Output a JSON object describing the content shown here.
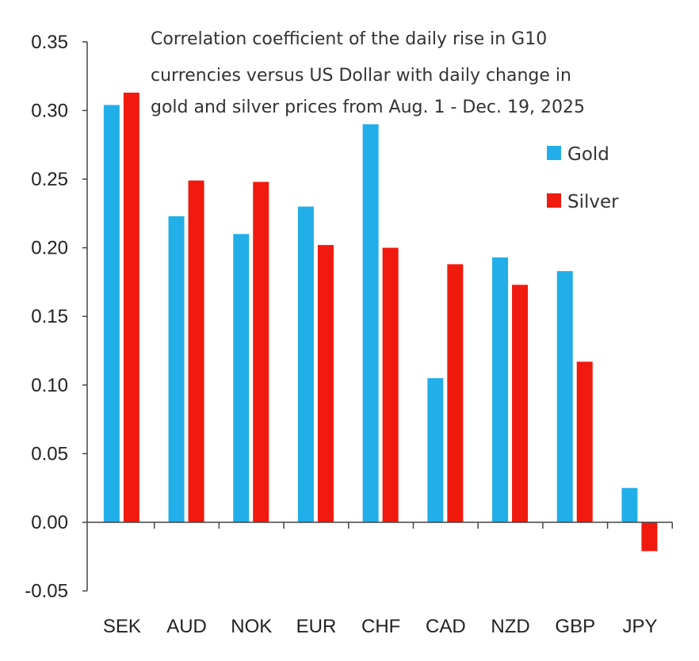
{
  "chart_data": {
    "type": "bar",
    "title_lines": [
      "Correlation coefficient of the daily rise in G10",
      "currencies versus US Dollar with daily change in",
      "gold and silver prices from Aug. 1 - Dec. 19, 2025"
    ],
    "xlabel": "",
    "ylabel": "",
    "categories": [
      "SEK",
      "AUD",
      "NOK",
      "EUR",
      "CHF",
      "CAD",
      "NZD",
      "GBP",
      "JPY"
    ],
    "series": [
      {
        "name": "Gold",
        "color": "#22aee8",
        "values": [
          0.304,
          0.223,
          0.21,
          0.23,
          0.29,
          0.105,
          0.193,
          0.183,
          0.025
        ]
      },
      {
        "name": "Silver",
        "color": "#f01a0e",
        "values": [
          0.313,
          0.249,
          0.248,
          0.202,
          0.2,
          0.188,
          0.173,
          0.117,
          -0.021
        ]
      }
    ],
    "ylim": [
      -0.05,
      0.35
    ],
    "yticks": [
      "-0.05",
      "0.00",
      "0.05",
      "0.10",
      "0.15",
      "0.20",
      "0.25",
      "0.30",
      "0.35"
    ],
    "grid": false,
    "legend_position": "top-right"
  }
}
